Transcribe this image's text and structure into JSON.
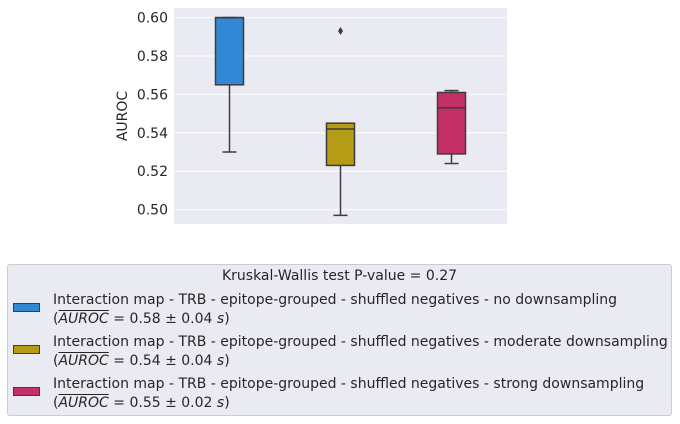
{
  "chart_data": {
    "type": "box",
    "ylabel": "AUROC",
    "xlabel": "",
    "ylim": [
      0.4925,
      0.605
    ],
    "yticks": [
      "0.50",
      "0.52",
      "0.54",
      "0.56",
      "0.58",
      "0.60"
    ],
    "grid": true,
    "legend_title": "Kruskal-Wallis test P-value = 0.27",
    "legend_placement": "below",
    "series": [
      {
        "name": "Interaction map - TRB - epitope-grouped - shuffled negatives - no downsampling",
        "stat_symbol": "AUROC",
        "stat_text": " = 0.58 ± 0.04 ",
        "stat_unit": "s",
        "color": "#3388d5",
        "whisker_low": 0.53,
        "q1": 0.565,
        "median": 0.6,
        "q3": 0.6,
        "whisker_high": 0.6,
        "outliers": []
      },
      {
        "name": "Interaction map - TRB - epitope-grouped - shuffled negatives - moderate downsampling",
        "stat_symbol": "AUROC",
        "stat_text": " = 0.54 ± 0.04 ",
        "stat_unit": "s",
        "color": "#b49c17",
        "whisker_low": 0.497,
        "q1": 0.523,
        "median": 0.542,
        "q3": 0.545,
        "whisker_high": 0.545,
        "outliers": [
          0.593
        ]
      },
      {
        "name": "Interaction map - TRB - epitope-grouped - shuffled negatives - strong downsampling",
        "stat_symbol": "AUROC",
        "stat_text": " = 0.55 ± 0.02 ",
        "stat_unit": "s",
        "color": "#c42f66",
        "whisker_low": 0.524,
        "q1": 0.529,
        "median": 0.553,
        "q3": 0.561,
        "whisker_high": 0.562,
        "outliers": []
      }
    ]
  }
}
